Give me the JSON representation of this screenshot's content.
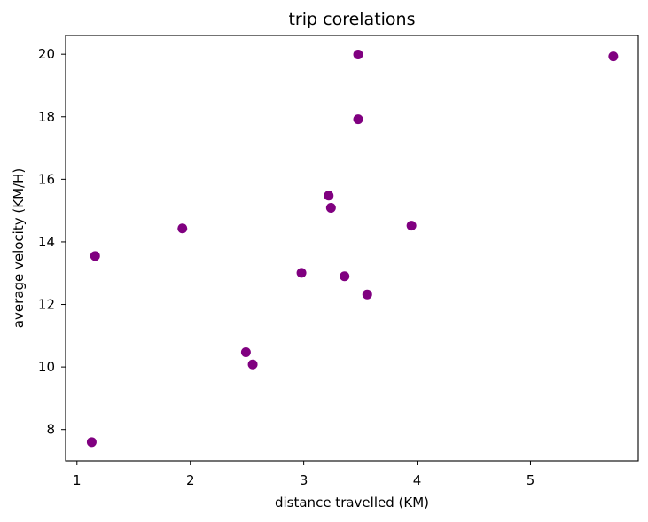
{
  "chart_data": {
    "type": "scatter",
    "title": "trip corelations",
    "xlabel": "distance travelled (KM)",
    "ylabel": "average velocity (KM/H)",
    "xlim": [
      0.9,
      5.95
    ],
    "ylim": [
      7.0,
      20.6
    ],
    "xticks": [
      1,
      2,
      3,
      4,
      5
    ],
    "yticks": [
      8,
      10,
      12,
      14,
      16,
      18,
      20
    ],
    "grid": false,
    "marker_color": "#800080",
    "series": [
      {
        "points": [
          {
            "x": 1.13,
            "y": 7.6
          },
          {
            "x": 1.16,
            "y": 13.55
          },
          {
            "x": 1.93,
            "y": 14.43
          },
          {
            "x": 2.49,
            "y": 10.47
          },
          {
            "x": 2.55,
            "y": 10.08
          },
          {
            "x": 2.98,
            "y": 13.01
          },
          {
            "x": 3.22,
            "y": 15.48
          },
          {
            "x": 3.24,
            "y": 15.09
          },
          {
            "x": 3.36,
            "y": 12.9
          },
          {
            "x": 3.48,
            "y": 19.99
          },
          {
            "x": 3.48,
            "y": 17.92
          },
          {
            "x": 3.56,
            "y": 12.32
          },
          {
            "x": 3.95,
            "y": 14.52
          },
          {
            "x": 5.73,
            "y": 19.93
          }
        ]
      }
    ]
  }
}
